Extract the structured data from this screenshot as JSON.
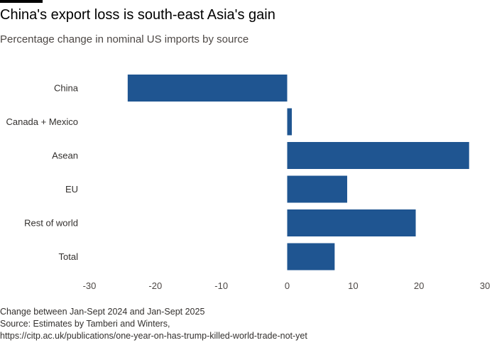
{
  "header": {
    "title": "China's export loss is south-east Asia's gain",
    "subtitle": "Percentage change in nominal US imports by source"
  },
  "footer": {
    "note": "Change between Jan-Sept 2024 and Jan-Sept 2025",
    "source": "Source: Estimates by Tamberi and Winters,",
    "url": "https://citp.ac.uk/publications/one-year-on-has-trump-killed-world-trade-not-yet"
  },
  "colors": {
    "bar": "#1f5591",
    "accent": "#000000"
  },
  "chart_data": {
    "type": "bar",
    "orientation": "horizontal",
    "title": "China's export loss is south-east Asia's gain",
    "subtitle": "Percentage change in nominal US imports by source",
    "categories": [
      "China",
      "Canada + Mexico",
      "Asean",
      "EU",
      "Rest of world",
      "Total"
    ],
    "values": [
      -24.2,
      0.7,
      27.6,
      9.1,
      19.5,
      7.2
    ],
    "xlim": [
      -30,
      30
    ],
    "xticks": [
      -30,
      -20,
      -10,
      0,
      10,
      20,
      30
    ],
    "xlabel": "",
    "ylabel": "",
    "grid": false,
    "legend": "none"
  }
}
